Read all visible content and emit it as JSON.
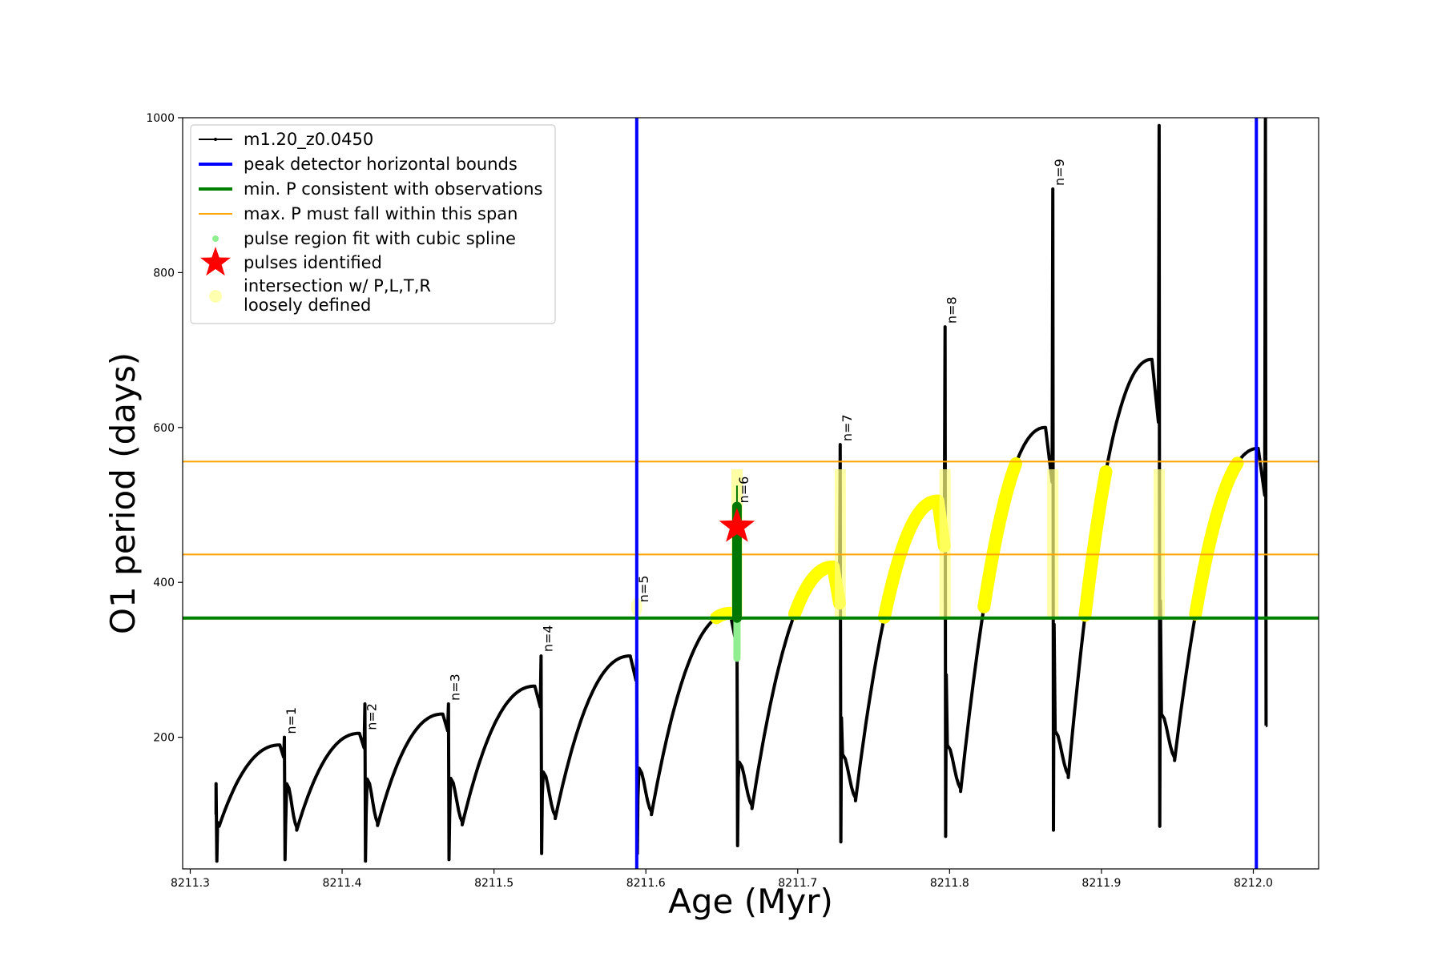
{
  "chart_data": {
    "type": "line",
    "title": "",
    "xlabel": "Age (Myr)",
    "ylabel": "O1 period (days)",
    "xlim": [
      8211.295,
      8212.043
    ],
    "ylim": [
      30,
      1000
    ],
    "x_ticks": [
      8211.3,
      8211.4,
      8211.5,
      8211.6,
      8211.7,
      8211.8,
      8211.9,
      8212.0
    ],
    "x_tick_labels": [
      "8211.3",
      "8211.4",
      "8211.5",
      "8211.6",
      "8211.7",
      "8211.8",
      "8211.9",
      "8212.0"
    ],
    "y_ticks": [
      200,
      400,
      600,
      800,
      1000
    ],
    "y_tick_labels": [
      "200",
      "400",
      "600",
      "800",
      "1000"
    ],
    "legend_position": "upper-left",
    "legend": [
      {
        "key": "model",
        "label": "m1.20_z0.0450",
        "color": "#000000",
        "style": "line-marker"
      },
      {
        "key": "hbounds",
        "label": "peak detector horizontal bounds",
        "color": "#0000ff",
        "style": "thick-line"
      },
      {
        "key": "minp",
        "label": "min. P consistent with observations",
        "color": "#008000",
        "style": "thick-line"
      },
      {
        "key": "maxp",
        "label": "max. P must fall within this span",
        "color": "#ffa500",
        "style": "thin-line"
      },
      {
        "key": "spline",
        "label": "pulse region fit with cubic spline",
        "color": "#90ee90",
        "style": "dot"
      },
      {
        "key": "pulses",
        "label": "pulses identified",
        "color": "#ff0000",
        "style": "star"
      },
      {
        "key": "loose",
        "label": "intersection w/ P,L,T,R",
        "label2": "loosely defined",
        "color": "#ffffb0",
        "style": "big-dot"
      }
    ],
    "horizontal_bounds": [
      8211.594,
      8212.002
    ],
    "min_period": 354,
    "max_period_span": [
      436,
      556
    ],
    "model_line": {
      "pulse_ages": [
        8211.317,
        8211.362,
        8211.415,
        8211.47,
        8211.531,
        8211.594,
        8211.66,
        8211.728,
        8211.797,
        8211.868,
        8211.938,
        8212.008
      ],
      "cycle_peaks": [
        190,
        205,
        230,
        266,
        305,
        360,
        420,
        505,
        600,
        688,
        573
      ],
      "post_pulse_min": [
        85,
        80,
        86,
        87,
        95,
        100,
        108,
        118,
        130,
        148,
        170
      ],
      "spikes_high": [
        140,
        200,
        243,
        243,
        305,
        300,
        360,
        578,
        730,
        908,
        990,
        1000
      ],
      "spikes_low": [
        40,
        42,
        40,
        42,
        50,
        50,
        60,
        65,
        72,
        80,
        85,
        215
      ],
      "end_point": 215
    },
    "pulse_labels": [
      "n=1",
      "n=2",
      "n=3",
      "n=4",
      "n=5",
      "n=6",
      "n=7",
      "n=8",
      "n=9"
    ],
    "pulse_label_ages": [
      8211.362,
      8211.415,
      8211.47,
      8211.531,
      8211.594,
      8211.66,
      8211.728,
      8211.797,
      8211.868
    ],
    "pulse_label_values": [
      200,
      205,
      243,
      306,
      370,
      498,
      578,
      730,
      908
    ],
    "identified_pulse": {
      "age": 8211.66,
      "period": 472
    },
    "spline_region": {
      "age": 8211.66,
      "period_min": 302,
      "period_max": 355
    },
    "green_pulse_region": {
      "age": 8211.66,
      "period_min": 354,
      "period_max": 498,
      "tip": 525
    }
  }
}
